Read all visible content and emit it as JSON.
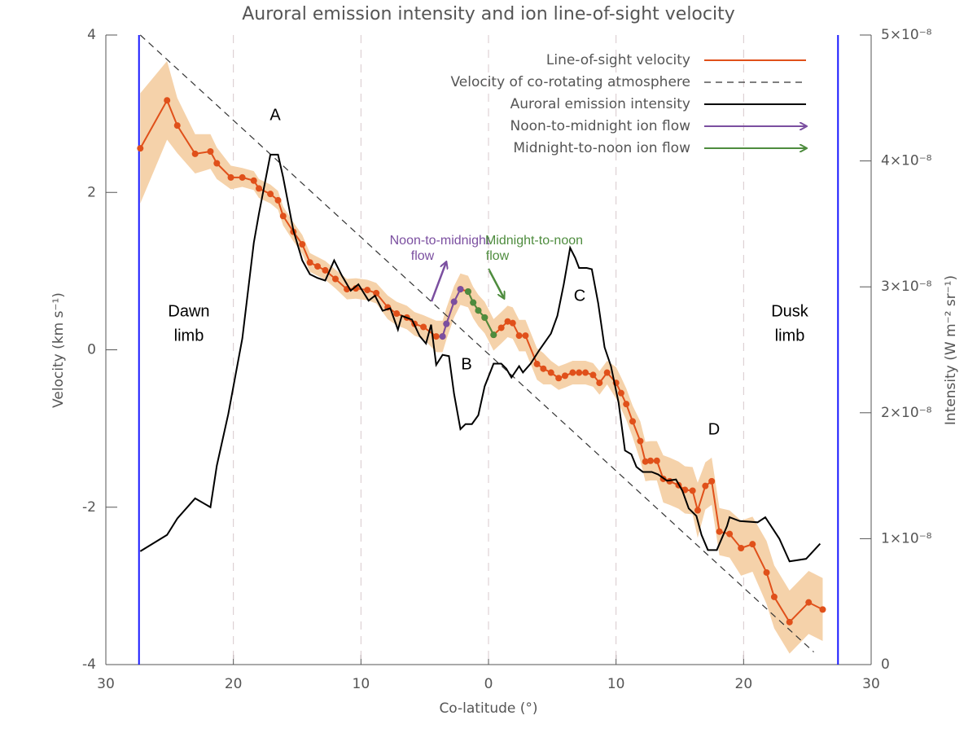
{
  "chart_data": {
    "type": "line",
    "title": "Auroral emission intensity and ion line-of-sight velocity",
    "x_label": "Co-latitude (°)",
    "y_label": "Velocity (km s⁻¹)",
    "y2_label": "Intensity (W m⁻² sr⁻¹)",
    "xlim": [
      -30,
      30
    ],
    "xticks": [
      {
        "value": -30,
        "label": "30"
      },
      {
        "value": -20,
        "label": "20"
      },
      {
        "value": -10,
        "label": "10"
      },
      0,
      10,
      20,
      30
    ],
    "ylim": [
      -4,
      4
    ],
    "yticks": [
      -4,
      -2,
      0,
      2,
      4
    ],
    "y2lim": [
      0,
      5e-08
    ],
    "y2ticks": [
      0,
      {
        "value": 1e-08,
        "label": "1×10⁻⁸"
      },
      {
        "value": 2e-08,
        "label": "2×10⁻⁸"
      },
      {
        "value": 3e-08,
        "label": "3×10⁻⁸"
      },
      {
        "value": 4e-08,
        "label": "4×10⁻⁸"
      },
      {
        "value": 5e-08,
        "label": "5×10⁻⁸"
      }
    ],
    "grid": true,
    "legend": "upper right",
    "limb_x": [
      -27.4,
      27.4
    ],
    "limb_color": "#1a1aff",
    "band_color": "#f5d2aa",
    "series": [
      {
        "name": "Line-of-sight velocity",
        "color": "#e0501a",
        "markers": true,
        "x": [
          -27.3,
          -25.2,
          -24.4,
          -23.0,
          -21.8,
          -21.3,
          -20.2,
          -19.3,
          -18.4,
          -18.0,
          -17.1,
          -16.5,
          -16.1,
          -15.3,
          -14.6,
          -14.0,
          -13.4,
          -12.8,
          -12.0,
          -11.1,
          -10.4,
          -9.5,
          -8.8,
          -7.9,
          -7.2,
          -6.4,
          -5.8,
          -5.1,
          -4.1,
          -3.6,
          -3.3,
          -2.7,
          -2.2,
          -1.6,
          -1.2,
          -0.8,
          -0.3,
          0.4,
          1.0,
          1.5,
          1.9,
          2.4,
          2.9,
          3.8,
          4.3,
          4.9,
          5.5,
          6.0,
          6.6,
          7.1,
          7.6,
          8.2,
          8.7,
          9.3,
          10.0,
          10.4,
          10.8,
          11.3,
          11.9,
          12.3,
          12.7,
          13.2,
          13.7,
          14.2,
          14.9,
          15.4,
          16.0,
          16.4,
          17.0,
          17.5,
          18.1,
          18.9,
          19.8,
          20.7,
          21.8,
          22.4,
          23.6,
          25.1,
          26.2
        ],
        "values": [
          2.56,
          3.17,
          2.85,
          2.49,
          2.52,
          2.37,
          2.19,
          2.19,
          2.15,
          2.05,
          1.98,
          1.9,
          1.7,
          1.5,
          1.34,
          1.11,
          1.06,
          1.01,
          0.9,
          0.77,
          0.78,
          0.76,
          0.72,
          0.54,
          0.46,
          0.41,
          0.33,
          0.29,
          0.17,
          0.17,
          0.33,
          0.61,
          0.77,
          0.74,
          0.6,
          0.5,
          0.41,
          0.19,
          0.28,
          0.36,
          0.34,
          0.18,
          0.18,
          -0.18,
          -0.24,
          -0.29,
          -0.36,
          -0.33,
          -0.29,
          -0.29,
          -0.29,
          -0.32,
          -0.42,
          -0.29,
          -0.42,
          -0.55,
          -0.69,
          -0.91,
          -1.16,
          -1.42,
          -1.41,
          -1.41,
          -1.64,
          -1.67,
          -1.72,
          -1.78,
          -1.79,
          -2.04,
          -1.73,
          -1.67,
          -2.31,
          -2.34,
          -2.52,
          -2.47,
          -2.83,
          -3.14,
          -3.46,
          -3.21,
          -3.3
        ],
        "errors": [
          0.7,
          0.5,
          0.35,
          0.25,
          0.22,
          0.2,
          0.15,
          0.12,
          0.12,
          0.12,
          0.12,
          0.12,
          0.12,
          0.12,
          0.12,
          0.12,
          0.12,
          0.12,
          0.12,
          0.13,
          0.13,
          0.13,
          0.13,
          0.15,
          0.15,
          0.15,
          0.15,
          0.15,
          0.2,
          0.2,
          0.2,
          0.2,
          0.2,
          0.2,
          0.2,
          0.2,
          0.2,
          0.2,
          0.2,
          0.2,
          0.2,
          0.2,
          0.2,
          0.2,
          0.2,
          0.15,
          0.15,
          0.15,
          0.15,
          0.15,
          0.15,
          0.15,
          0.15,
          0.15,
          0.2,
          0.2,
          0.2,
          0.2,
          0.25,
          0.25,
          0.25,
          0.25,
          0.3,
          0.3,
          0.3,
          0.3,
          0.3,
          0.35,
          0.3,
          0.3,
          0.3,
          0.3,
          0.35,
          0.35,
          0.4,
          0.4,
          0.4,
          0.4,
          0.4
        ]
      },
      {
        "name": "Velocity of co-rotating atmosphere",
        "color": "#333333",
        "dash": true,
        "x": [
          -27.3,
          25.5
        ],
        "values": [
          4.0,
          -3.84
        ]
      },
      {
        "name": "Auroral emission intensity",
        "color": "#000000",
        "axis": "y2",
        "x": [
          -27.3,
          -25.2,
          -24.4,
          -23.0,
          -21.8,
          -21.3,
          -20.4,
          -19.3,
          -18.4,
          -18.0,
          -17.1,
          -16.5,
          -16.1,
          -15.3,
          -14.6,
          -14.0,
          -13.4,
          -12.8,
          -12.1,
          -11.5,
          -10.8,
          -10.2,
          -9.4,
          -8.9,
          -8.3,
          -7.7,
          -7.1,
          -6.8,
          -6.0,
          -5.4,
          -4.9,
          -4.5,
          -4.1,
          -3.6,
          -3.1,
          -2.7,
          -2.2,
          -1.8,
          -1.3,
          -0.8,
          -0.3,
          0.4,
          1.0,
          1.4,
          1.8,
          2.4,
          2.7,
          3.3,
          4.0,
          4.9,
          5.4,
          5.9,
          6.4,
          6.8,
          7.1,
          7.7,
          8.1,
          8.6,
          9.1,
          9.6,
          10.2,
          10.7,
          11.2,
          11.6,
          12.1,
          12.8,
          13.3,
          14.0,
          14.7,
          15.2,
          15.7,
          16.3,
          16.7,
          17.2,
          17.9,
          18.7,
          18.9,
          19.7,
          21.1,
          21.7,
          22.8,
          23.6,
          24.9,
          26.0
        ],
        "values": [
          9e-09,
          1.03e-08,
          1.16e-08,
          1.32e-08,
          1.25e-08,
          1.58e-08,
          1.99e-08,
          2.59e-08,
          3.35e-08,
          3.58e-08,
          4.05e-08,
          4.05e-08,
          3.87e-08,
          3.45e-08,
          3.21e-08,
          3.1e-08,
          3.07e-08,
          3.05e-08,
          3.21e-08,
          3.09e-08,
          2.97e-08,
          3.02e-08,
          2.89e-08,
          2.93e-08,
          2.81e-08,
          2.83e-08,
          2.66e-08,
          2.77e-08,
          2.74e-08,
          2.61e-08,
          2.55e-08,
          2.7e-08,
          2.38e-08,
          2.46e-08,
          2.45e-08,
          2.15e-08,
          1.87e-08,
          1.91e-08,
          1.91e-08,
          1.98e-08,
          2.21e-08,
          2.39e-08,
          2.39e-08,
          2.35e-08,
          2.28e-08,
          2.37e-08,
          2.32e-08,
          2.39e-08,
          2.5e-08,
          2.63e-08,
          2.77e-08,
          3.02e-08,
          3.31e-08,
          3.23e-08,
          3.15e-08,
          3.15e-08,
          3.14e-08,
          2.87e-08,
          2.52e-08,
          2.37e-08,
          2.08e-08,
          1.7e-08,
          1.67e-08,
          1.57e-08,
          1.53e-08,
          1.53e-08,
          1.51e-08,
          1.46e-08,
          1.47e-08,
          1.38e-08,
          1.24e-08,
          1.18e-08,
          1.03e-08,
          9.1e-09,
          9.1e-09,
          1.1e-08,
          1.17e-08,
          1.14e-08,
          1.13e-08,
          1.17e-08,
          1e-08,
          8.2e-09,
          8.4e-09,
          9.6e-09
        ]
      },
      {
        "name": "Noon-to-midnight ion flow",
        "color": "#7b4fa0",
        "markers": true,
        "legend_marker": "arrow",
        "x": [
          -3.6,
          -3.3,
          -2.7,
          -2.2
        ],
        "values": [
          0.17,
          0.33,
          0.61,
          0.77
        ]
      },
      {
        "name": "Midnight-to-noon ion flow",
        "color": "#4e8c3e",
        "markers": true,
        "legend_marker": "arrow",
        "x": [
          -1.6,
          -1.2,
          -0.8,
          -0.3,
          0.4
        ],
        "values": [
          0.74,
          0.6,
          0.5,
          0.41,
          0.19
        ]
      }
    ],
    "annotations": [
      "A",
      "B",
      "C",
      "D"
    ],
    "limb_labels": [
      {
        "lines": [
          "Dawn",
          "limb"
        ]
      },
      {
        "lines": [
          "Dusk",
          "limb"
        ]
      }
    ],
    "flow_labels": [
      {
        "lines": [
          "Noon-to-midnight",
          "flow"
        ],
        "color": "#7b4fa0"
      },
      {
        "lines": [
          "Midnight-to-noon",
          "flow"
        ],
        "color": "#4e8c3e"
      }
    ]
  }
}
